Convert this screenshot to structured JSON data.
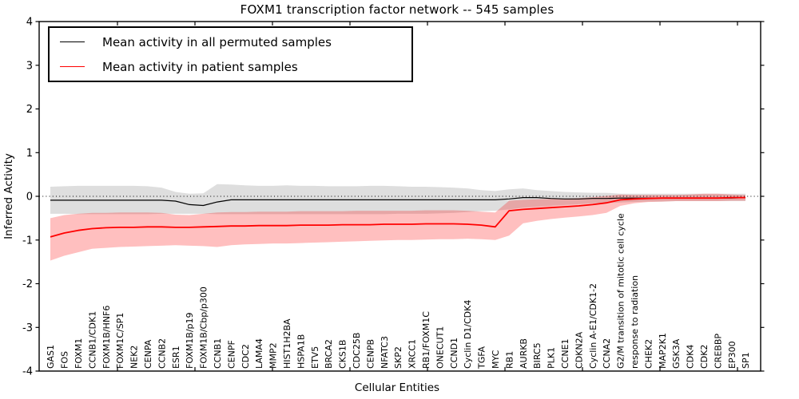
{
  "figure": {
    "title": "FOXM1 transcription factor network -- 545 samples",
    "x_axis_label": "Cellular Entities",
    "y_axis_label": "Inferred Activity"
  },
  "legend": {
    "entries": [
      {
        "label": "Mean activity in all permuted samples",
        "color": "#000000"
      },
      {
        "label": "Mean activity in patient samples",
        "color": "#ff0000"
      }
    ]
  },
  "chart_data": {
    "type": "line",
    "title": "FOXM1 transcription factor network -- 545 samples",
    "xlabel": "Cellular Entities",
    "ylabel": "Inferred Activity",
    "ylim": [
      -4,
      4
    ],
    "y_ticks": [
      4,
      3,
      2,
      1,
      0,
      -1,
      -2,
      -3,
      -4
    ],
    "grid": false,
    "legend_position": "upper left",
    "reference_line": {
      "y": 0,
      "style": "dotted",
      "color": "#000000"
    },
    "categories": [
      "GAS1",
      "FOS",
      "FOXM1",
      "CCNB1/CDK1",
      "FOXM1B/HNF6",
      "FOXM1C/SP1",
      "NEK2",
      "CENPA",
      "CCNB2",
      "ESR1",
      "FOXM1B/p19",
      "FOXM1B/Cbp/p300",
      "CCNB1",
      "CENPF",
      "CDC2",
      "LAMA4",
      "MMP2",
      "HIST1H2BA",
      "HSPA1B",
      "ETV5",
      "BRCA2",
      "CKS1B",
      "CDC25B",
      "CENPB",
      "NFATC3",
      "SKP2",
      "XRCC1",
      "RB1/FOXM1C",
      "ONECUT1",
      "CCND1",
      "Cyclin D1/CDK4",
      "TGFA",
      "MYC",
      "RB1",
      "AURKB",
      "BIRC5",
      "PLK1",
      "CCNE1",
      "CDKN2A",
      "Cyclin A-E1/CDK1-2",
      "CCNA2",
      "G2/M transition of mitotic cell cycle",
      "response to radiation",
      "CHEK2",
      "MAP2K1",
      "GSK3A",
      "CDK4",
      "CDK2",
      "CREBBP",
      "EP300",
      "SP1"
    ],
    "series": [
      {
        "name": "Mean activity in all permuted samples",
        "color": "#000000",
        "line_width": 1.2,
        "band_color": "#000000",
        "band_opacity": 0.13,
        "values": [
          -0.09,
          -0.09,
          -0.09,
          -0.09,
          -0.09,
          -0.09,
          -0.09,
          -0.09,
          -0.09,
          -0.11,
          -0.19,
          -0.21,
          -0.13,
          -0.08,
          -0.08,
          -0.08,
          -0.08,
          -0.08,
          -0.08,
          -0.08,
          -0.08,
          -0.08,
          -0.08,
          -0.08,
          -0.08,
          -0.08,
          -0.08,
          -0.08,
          -0.08,
          -0.08,
          -0.08,
          -0.08,
          -0.08,
          -0.06,
          -0.03,
          -0.03,
          -0.05,
          -0.06,
          -0.06,
          -0.05,
          -0.05,
          -0.04,
          -0.04,
          -0.04,
          -0.04,
          -0.04,
          -0.04,
          -0.04,
          -0.04,
          -0.04,
          -0.03
        ],
        "band_upper": [
          0.22,
          0.23,
          0.24,
          0.24,
          0.24,
          0.24,
          0.24,
          0.23,
          0.2,
          0.1,
          0.06,
          0.07,
          0.28,
          0.27,
          0.25,
          0.24,
          0.24,
          0.25,
          0.24,
          0.24,
          0.23,
          0.23,
          0.23,
          0.24,
          0.24,
          0.23,
          0.22,
          0.22,
          0.21,
          0.2,
          0.18,
          0.14,
          0.12,
          0.16,
          0.18,
          0.14,
          0.12,
          0.1,
          0.09,
          0.08,
          0.08,
          0.06,
          0.06,
          0.06,
          0.06,
          0.06,
          0.06,
          0.06,
          0.06,
          0.06,
          0.06
        ],
        "band_lower": [
          -0.4,
          -0.4,
          -0.41,
          -0.41,
          -0.41,
          -0.41,
          -0.41,
          -0.41,
          -0.4,
          -0.4,
          -0.4,
          -0.4,
          -0.41,
          -0.41,
          -0.41,
          -0.41,
          -0.41,
          -0.41,
          -0.41,
          -0.41,
          -0.41,
          -0.41,
          -0.41,
          -0.41,
          -0.41,
          -0.4,
          -0.4,
          -0.4,
          -0.39,
          -0.38,
          -0.36,
          -0.34,
          -0.33,
          -0.3,
          -0.26,
          -0.24,
          -0.22,
          -0.2,
          -0.18,
          -0.16,
          -0.15,
          -0.14,
          -0.13,
          -0.12,
          -0.12,
          -0.11,
          -0.11,
          -0.11,
          -0.11,
          -0.11,
          -0.11
        ]
      },
      {
        "name": "Mean activity in patient samples",
        "color": "#ff0000",
        "line_width": 1.8,
        "band_color": "#ff0000",
        "band_opacity": 0.25,
        "values": [
          -0.93,
          -0.84,
          -0.78,
          -0.74,
          -0.72,
          -0.71,
          -0.71,
          -0.7,
          -0.7,
          -0.71,
          -0.71,
          -0.7,
          -0.69,
          -0.68,
          -0.68,
          -0.67,
          -0.67,
          -0.67,
          -0.66,
          -0.66,
          -0.66,
          -0.65,
          -0.65,
          -0.65,
          -0.64,
          -0.64,
          -0.64,
          -0.63,
          -0.63,
          -0.63,
          -0.64,
          -0.66,
          -0.7,
          -0.33,
          -0.3,
          -0.28,
          -0.26,
          -0.24,
          -0.22,
          -0.19,
          -0.15,
          -0.08,
          -0.06,
          -0.05,
          -0.04,
          -0.04,
          -0.04,
          -0.04,
          -0.04,
          -0.03,
          -0.03
        ],
        "band_upper": [
          -0.5,
          -0.43,
          -0.4,
          -0.38,
          -0.38,
          -0.37,
          -0.37,
          -0.37,
          -0.38,
          -0.42,
          -0.43,
          -0.4,
          -0.37,
          -0.36,
          -0.36,
          -0.35,
          -0.35,
          -0.35,
          -0.34,
          -0.34,
          -0.34,
          -0.34,
          -0.33,
          -0.33,
          -0.33,
          -0.33,
          -0.33,
          -0.32,
          -0.32,
          -0.32,
          -0.33,
          -0.35,
          -0.37,
          -0.1,
          -0.08,
          -0.07,
          -0.06,
          -0.05,
          -0.04,
          -0.02,
          0.01,
          0.04,
          0.03,
          0.03,
          0.03,
          0.03,
          0.04,
          0.06,
          0.06,
          0.04,
          0.03
        ],
        "band_lower": [
          -1.47,
          -1.36,
          -1.28,
          -1.2,
          -1.18,
          -1.16,
          -1.15,
          -1.14,
          -1.13,
          -1.12,
          -1.13,
          -1.14,
          -1.16,
          -1.12,
          -1.1,
          -1.09,
          -1.08,
          -1.08,
          -1.07,
          -1.06,
          -1.05,
          -1.04,
          -1.03,
          -1.02,
          -1.01,
          -1.0,
          -1.0,
          -0.99,
          -0.98,
          -0.98,
          -0.97,
          -0.98,
          -1.0,
          -0.9,
          -0.62,
          -0.56,
          -0.52,
          -0.49,
          -0.46,
          -0.43,
          -0.38,
          -0.22,
          -0.16,
          -0.13,
          -0.12,
          -0.11,
          -0.11,
          -0.11,
          -0.11,
          -0.1,
          -0.1
        ]
      }
    ]
  }
}
